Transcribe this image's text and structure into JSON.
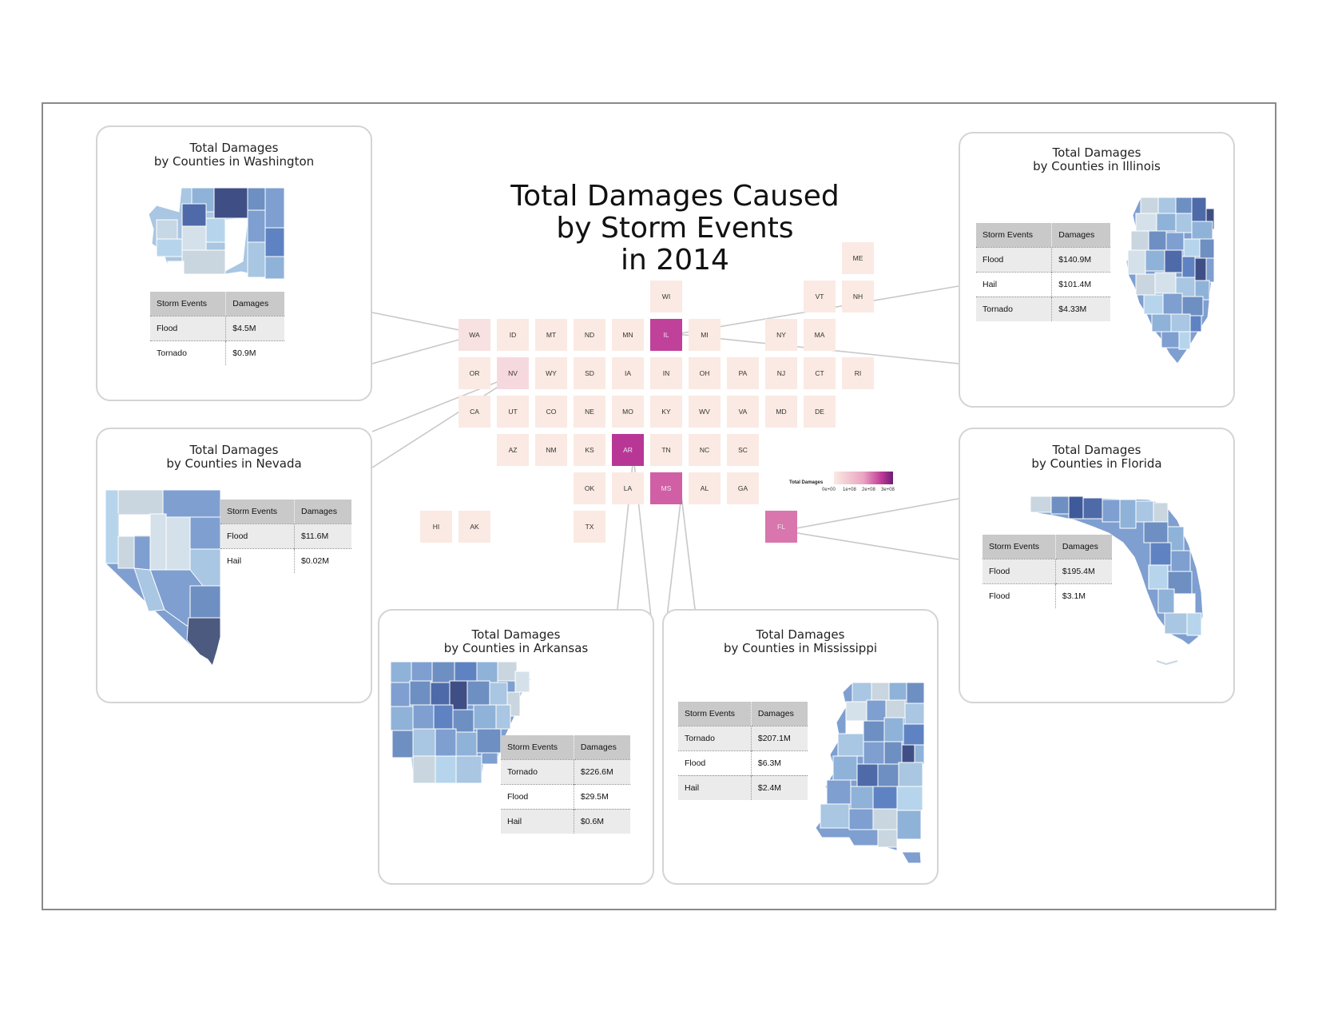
{
  "title": [
    "Total Damages Caused",
    "by Storm Events",
    "in 2014"
  ],
  "colors": {
    "tile_min": "#faeae3",
    "tile_max": "#6b1f73",
    "county_light": "#d6e1ea",
    "county_dark": "#3f4f86"
  },
  "legend": {
    "title": "Total Damages",
    "ticks": [
      "0e+00",
      "1e+08",
      "2e+08",
      "3e+08"
    ],
    "range": [
      0,
      330000000
    ]
  },
  "tilemap": {
    "damages_millions": {
      "WA": 5.4,
      "NV": 11.62,
      "IL": 246.63,
      "AR": 256.8,
      "MS": 215.8,
      "FL": 198.5
    },
    "tiles": [
      {
        "abbr": "ME",
        "row": 0,
        "col": 11
      },
      {
        "abbr": "WI",
        "row": 1,
        "col": 6
      },
      {
        "abbr": "VT",
        "row": 1,
        "col": 10
      },
      {
        "abbr": "NH",
        "row": 1,
        "col": 11
      },
      {
        "abbr": "WA",
        "row": 2,
        "col": 1
      },
      {
        "abbr": "ID",
        "row": 2,
        "col": 2
      },
      {
        "abbr": "MT",
        "row": 2,
        "col": 3
      },
      {
        "abbr": "ND",
        "row": 2,
        "col": 4
      },
      {
        "abbr": "MN",
        "row": 2,
        "col": 5
      },
      {
        "abbr": "IL",
        "row": 2,
        "col": 6
      },
      {
        "abbr": "MI",
        "row": 2,
        "col": 7
      },
      {
        "abbr": "NY",
        "row": 2,
        "col": 9
      },
      {
        "abbr": "MA",
        "row": 2,
        "col": 10
      },
      {
        "abbr": "OR",
        "row": 3,
        "col": 1
      },
      {
        "abbr": "NV",
        "row": 3,
        "col": 2
      },
      {
        "abbr": "WY",
        "row": 3,
        "col": 3
      },
      {
        "abbr": "SD",
        "row": 3,
        "col": 4
      },
      {
        "abbr": "IA",
        "row": 3,
        "col": 5
      },
      {
        "abbr": "IN",
        "row": 3,
        "col": 6
      },
      {
        "abbr": "OH",
        "row": 3,
        "col": 7
      },
      {
        "abbr": "PA",
        "row": 3,
        "col": 8
      },
      {
        "abbr": "NJ",
        "row": 3,
        "col": 9
      },
      {
        "abbr": "CT",
        "row": 3,
        "col": 10
      },
      {
        "abbr": "RI",
        "row": 3,
        "col": 11
      },
      {
        "abbr": "CA",
        "row": 4,
        "col": 1
      },
      {
        "abbr": "UT",
        "row": 4,
        "col": 2
      },
      {
        "abbr": "CO",
        "row": 4,
        "col": 3
      },
      {
        "abbr": "NE",
        "row": 4,
        "col": 4
      },
      {
        "abbr": "MO",
        "row": 4,
        "col": 5
      },
      {
        "abbr": "KY",
        "row": 4,
        "col": 6
      },
      {
        "abbr": "WV",
        "row": 4,
        "col": 7
      },
      {
        "abbr": "VA",
        "row": 4,
        "col": 8
      },
      {
        "abbr": "MD",
        "row": 4,
        "col": 9
      },
      {
        "abbr": "DE",
        "row": 4,
        "col": 10
      },
      {
        "abbr": "AZ",
        "row": 5,
        "col": 2
      },
      {
        "abbr": "NM",
        "row": 5,
        "col": 3
      },
      {
        "abbr": "KS",
        "row": 5,
        "col": 4
      },
      {
        "abbr": "AR",
        "row": 5,
        "col": 5
      },
      {
        "abbr": "TN",
        "row": 5,
        "col": 6
      },
      {
        "abbr": "NC",
        "row": 5,
        "col": 7
      },
      {
        "abbr": "SC",
        "row": 5,
        "col": 8
      },
      {
        "abbr": "OK",
        "row": 6,
        "col": 4
      },
      {
        "abbr": "LA",
        "row": 6,
        "col": 5
      },
      {
        "abbr": "MS",
        "row": 6,
        "col": 6
      },
      {
        "abbr": "AL",
        "row": 6,
        "col": 7
      },
      {
        "abbr": "GA",
        "row": 6,
        "col": 8
      },
      {
        "abbr": "HI",
        "row": 7,
        "col": 0
      },
      {
        "abbr": "AK",
        "row": 7,
        "col": 1
      },
      {
        "abbr": "TX",
        "row": 7,
        "col": 4
      },
      {
        "abbr": "FL",
        "row": 7,
        "col": 9
      }
    ]
  },
  "panels": {
    "washington": {
      "title_line1": "Total Damages",
      "title_line2": "by Counties in Washington",
      "headers": [
        "Storm Events",
        "Damages"
      ],
      "rows": [
        [
          "Flood",
          "$4.5M"
        ],
        [
          "Tornado",
          "$0.9M"
        ]
      ]
    },
    "illinois": {
      "title_line1": "Total Damages",
      "title_line2": "by Counties in Illinois",
      "headers": [
        "Storm Events",
        "Damages"
      ],
      "rows": [
        [
          "Flood",
          "$140.9M"
        ],
        [
          "Hail",
          "$101.4M"
        ],
        [
          "Tornado",
          "$4.33M"
        ]
      ]
    },
    "nevada": {
      "title_line1": "Total Damages",
      "title_line2": "by Counties in Nevada",
      "headers": [
        "Storm Events",
        "Damages"
      ],
      "rows": [
        [
          "Flood",
          "$11.6M"
        ],
        [
          "Hail",
          "$0.02M"
        ]
      ]
    },
    "florida": {
      "title_line1": "Total Damages",
      "title_line2": "by Counties in Florida",
      "headers": [
        "Storm Events",
        "Damages"
      ],
      "rows": [
        [
          "Flood",
          "$195.4M"
        ],
        [
          "Flood",
          "$3.1M"
        ]
      ]
    },
    "arkansas": {
      "title_line1": "Total Damages",
      "title_line2": "by Counties in Arkansas",
      "headers": [
        "Storm Events",
        "Damages"
      ],
      "rows": [
        [
          "Tornado",
          "$226.6M"
        ],
        [
          "Flood",
          "$29.5M"
        ],
        [
          "Hail",
          "$0.6M"
        ]
      ]
    },
    "mississippi": {
      "title_line1": "Total Damages",
      "title_line2": "by Counties in Mississippi",
      "headers": [
        "Storm Events",
        "Damages"
      ],
      "rows": [
        [
          "Tornado",
          "$207.1M"
        ],
        [
          "Flood",
          "$6.3M"
        ],
        [
          "Hail",
          "$2.4M"
        ]
      ]
    }
  }
}
